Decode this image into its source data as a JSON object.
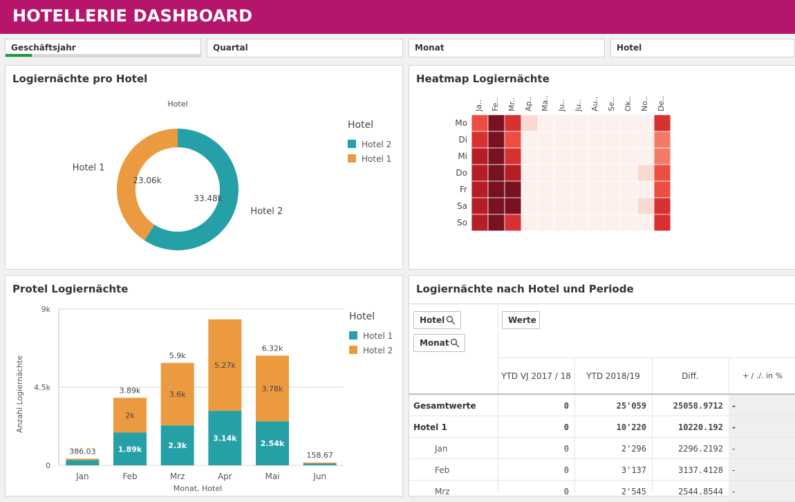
{
  "header": {
    "title": "HOTELLERIE DASHBOARD"
  },
  "filters": [
    {
      "label": "Geschäftsjahr"
    },
    {
      "label": "Quartal"
    },
    {
      "label": "Monat"
    },
    {
      "label": "Hotel"
    }
  ],
  "panels": {
    "donut": {
      "title": "Logiernächte pro Hotel"
    },
    "heatmap": {
      "title": "Heatmap Logiernächte"
    },
    "bars": {
      "title": "Protel Logiernächte"
    },
    "table": {
      "title": "Logiernächte nach Hotel und Periode"
    }
  },
  "table": {
    "dims": [
      "Hotel",
      "Monat"
    ],
    "measure_button": "Werte",
    "columns": [
      "YTD VJ 2017 / 18",
      "YTD 2018/19",
      "Diff.",
      "+ / ./. in %"
    ],
    "rows": [
      {
        "label": "Gesamtwerte",
        "bold": true,
        "indent": false,
        "vj": "0",
        "ytd": "25'059",
        "diff": "25058.9712",
        "pct": "-"
      },
      {
        "label": "Hotel 1",
        "bold": true,
        "indent": false,
        "vj": "0",
        "ytd": "10'220",
        "diff": "10220.192",
        "pct": "-"
      },
      {
        "label": "Jan",
        "bold": false,
        "indent": true,
        "vj": "0",
        "ytd": "2'296",
        "diff": "2296.2192",
        "pct": "-"
      },
      {
        "label": "Feb",
        "bold": false,
        "indent": true,
        "vj": "0",
        "ytd": "3'137",
        "diff": "3137.4128",
        "pct": "-"
      },
      {
        "label": "Mrz",
        "bold": false,
        "indent": true,
        "vj": "0",
        "ytd": "2'545",
        "diff": "2544.8544",
        "pct": "-"
      }
    ]
  },
  "colors": {
    "teal": "#26a0a7",
    "orange": "#ec9a3f",
    "brand": "#b5156a"
  },
  "chart_data": [
    {
      "type": "pie",
      "variant": "donut",
      "title": "Logiernächte pro Hotel",
      "subtitle": "Hotel",
      "legend_title": "Hotel",
      "legend": [
        "Hotel 2",
        "Hotel 1"
      ],
      "slices": [
        {
          "name": "Hotel 2",
          "value": 33.48,
          "label": "33.48k",
          "color": "#26a0a7"
        },
        {
          "name": "Hotel 1",
          "value": 23.06,
          "label": "23.06k",
          "color": "#ec9a3f"
        }
      ]
    },
    {
      "type": "heatmap",
      "title": "Heatmap Logiernächte",
      "columns": [
        "Ja..",
        "Fe..",
        "Mr..",
        "Ap..",
        "Ma..",
        "Ju..",
        "Ju..",
        "Au..",
        "Se..",
        "Ok..",
        "No..",
        "De.."
      ],
      "rows": [
        "Mo",
        "Di",
        "Mi",
        "Do",
        "Fr",
        "Sa",
        "So"
      ],
      "values": [
        [
          5,
          9,
          6,
          1,
          0,
          0,
          0,
          0,
          0,
          0,
          0,
          6
        ],
        [
          6,
          9,
          5,
          0,
          0,
          0,
          0,
          0,
          0,
          0,
          0,
          4
        ],
        [
          7,
          9,
          6,
          0,
          0,
          0,
          0,
          0,
          0,
          0,
          0,
          4
        ],
        [
          7,
          9,
          7,
          0,
          0,
          0,
          0,
          0,
          0,
          0,
          1,
          5
        ],
        [
          7,
          9,
          9,
          0,
          0,
          0,
          0,
          0,
          0,
          0,
          0.3,
          5
        ],
        [
          7,
          9,
          9,
          0,
          0,
          0,
          0,
          0,
          0,
          0,
          1,
          6
        ],
        [
          7,
          9,
          6,
          0,
          0,
          0,
          0,
          0,
          0,
          0,
          0,
          6
        ]
      ]
    },
    {
      "type": "bar",
      "stacked": true,
      "title": "Protel Logiernächte",
      "xlabel": "Monat, Hotel",
      "ylabel": "Anzahl Logiernächte",
      "ylim": [
        0,
        9000
      ],
      "yticks": [
        {
          "v": 0,
          "label": "0"
        },
        {
          "v": 4500,
          "label": "4.5k"
        },
        {
          "v": 9000,
          "label": "9k"
        }
      ],
      "legend_title": "Hotel",
      "legend": [
        "Hotel 1",
        "Hotel 2"
      ],
      "categories": [
        "Jan",
        "Feb",
        "Mrz",
        "Apr",
        "Mai",
        "Jun"
      ],
      "series": [
        {
          "name": "Hotel 1",
          "color": "#26a0a7",
          "values": [
            300,
            1890,
            2300,
            3140,
            2540,
            100
          ],
          "labels": [
            "",
            "1.89k",
            "2.3k",
            "3.14k",
            "2.54k",
            ""
          ]
        },
        {
          "name": "Hotel 2",
          "color": "#ec9a3f",
          "values": [
            86.03,
            2000,
            3600,
            5270,
            3780,
            58.67
          ],
          "labels": [
            "",
            "2k",
            "3.6k",
            "5.27k",
            "3.78k",
            ""
          ]
        }
      ],
      "totals": [
        "386.03",
        "3.89k",
        "5.9k",
        "8.41k",
        "6.32k",
        "158.67"
      ],
      "show_totals": [
        true,
        true,
        true,
        false,
        true,
        true
      ]
    }
  ]
}
